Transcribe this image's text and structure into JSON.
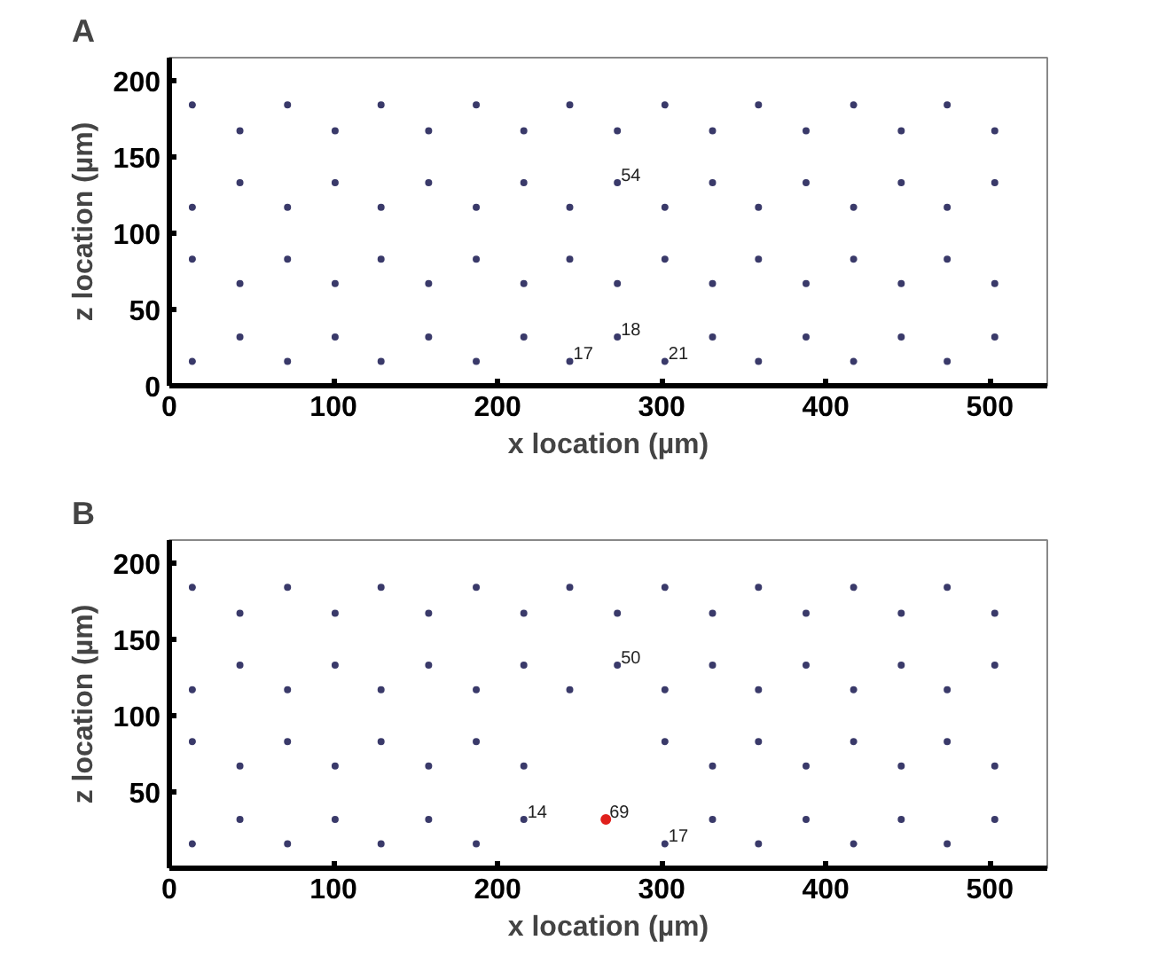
{
  "chart_data": [
    {
      "type": "scatter",
      "title": "A",
      "xlabel": "x location (µm)",
      "ylabel": "z location (µm)",
      "xlim": [
        0,
        535
      ],
      "ylim": [
        0,
        215
      ],
      "xticks": [
        0,
        100,
        200,
        300,
        400,
        500
      ],
      "yticks": [
        0,
        50,
        100,
        150,
        200
      ],
      "grid": false,
      "marker": "circle",
      "series": [
        {
          "color": "#3a3a6a",
          "x": [
            14,
            72,
            129,
            187,
            244,
            302,
            359,
            417,
            474,
            43,
            101,
            158,
            216,
            273,
            331,
            388,
            446,
            503,
            43,
            101,
            158,
            216,
            273,
            331,
            388,
            446,
            503,
            14,
            72,
            129,
            187,
            244,
            302,
            359,
            417,
            474,
            14,
            72,
            129,
            187,
            244,
            302,
            359,
            417,
            474,
            43,
            101,
            158,
            216,
            273,
            331,
            388,
            446,
            503,
            43,
            101,
            158,
            216,
            273,
            331,
            388,
            446,
            503,
            14,
            72,
            129,
            187,
            244,
            302,
            359,
            417,
            474
          ],
          "values": [
            184,
            184,
            184,
            184,
            184,
            184,
            184,
            184,
            184,
            167,
            167,
            167,
            167,
            167,
            167,
            167,
            167,
            167,
            133,
            133,
            133,
            133,
            133,
            133,
            133,
            133,
            133,
            117,
            117,
            117,
            117,
            117,
            117,
            117,
            117,
            117,
            83,
            83,
            83,
            83,
            83,
            83,
            83,
            83,
            83,
            67,
            67,
            67,
            67,
            67,
            67,
            67,
            67,
            67,
            32,
            32,
            32,
            32,
            32,
            32,
            32,
            32,
            32,
            16,
            16,
            16,
            16,
            16,
            16,
            16,
            16,
            16
          ]
        }
      ],
      "annotations": [
        {
          "text": "54",
          "x": 273,
          "y": 133
        },
        {
          "text": "18",
          "x": 273,
          "y": 32
        },
        {
          "text": "17",
          "x": 244,
          "y": 16
        },
        {
          "text": "21",
          "x": 302,
          "y": 16
        }
      ]
    },
    {
      "type": "scatter",
      "title": "B",
      "xlabel": "x location (µm)",
      "ylabel": "z location (µm)",
      "xlim": [
        0,
        535
      ],
      "ylim": [
        0,
        215
      ],
      "xticks": [
        0,
        100,
        200,
        300,
        400,
        500
      ],
      "yticks": [
        {
          "value": 0,
          "label": null
        },
        50,
        100,
        150,
        200
      ],
      "grid": false,
      "marker": "circle",
      "series": [
        {
          "color": "#3a3a6a",
          "x": [
            14,
            72,
            129,
            187,
            244,
            302,
            359,
            417,
            474,
            43,
            101,
            158,
            216,
            273,
            331,
            388,
            446,
            503,
            43,
            101,
            158,
            216,
            273,
            331,
            388,
            446,
            503,
            14,
            72,
            129,
            187,
            244,
            302,
            359,
            417,
            474,
            14,
            72,
            129,
            187,
            302,
            359,
            417,
            474,
            43,
            101,
            158,
            216,
            331,
            388,
            446,
            503,
            43,
            101,
            158,
            216,
            331,
            388,
            446,
            503,
            14,
            72,
            129,
            187,
            302,
            359,
            417,
            474
          ],
          "values": [
            184,
            184,
            184,
            184,
            184,
            184,
            184,
            184,
            184,
            167,
            167,
            167,
            167,
            167,
            167,
            167,
            167,
            167,
            133,
            133,
            133,
            133,
            133,
            133,
            133,
            133,
            133,
            117,
            117,
            117,
            117,
            117,
            117,
            117,
            117,
            117,
            83,
            83,
            83,
            83,
            83,
            83,
            83,
            83,
            67,
            67,
            67,
            67,
            67,
            67,
            67,
            67,
            32,
            32,
            32,
            32,
            32,
            32,
            32,
            32,
            16,
            16,
            16,
            16,
            16,
            16,
            16,
            16
          ]
        },
        {
          "color": "#e0201c",
          "x": [
            266
          ],
          "values": [
            32
          ]
        }
      ],
      "annotations": [
        {
          "text": "50",
          "x": 273,
          "y": 133
        },
        {
          "text": "69",
          "x": 266,
          "y": 32
        },
        {
          "text": "14",
          "x": 216,
          "y": 32
        },
        {
          "text": "17",
          "x": 302,
          "y": 16
        }
      ]
    }
  ]
}
